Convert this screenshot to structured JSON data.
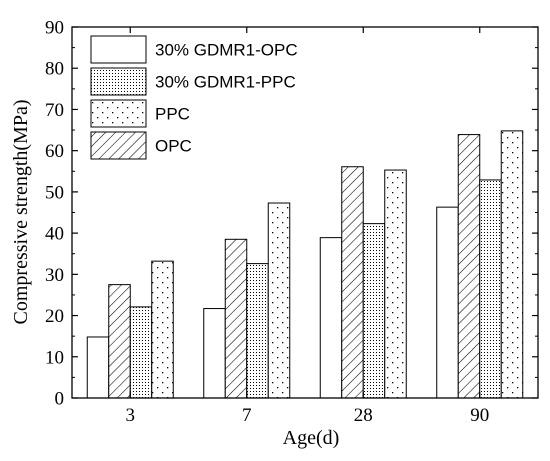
{
  "chart_data": {
    "type": "bar",
    "xlabel": "Age(d)",
    "ylabel": "Compressive strength(MPa)",
    "categories": [
      "3",
      "7",
      "28",
      "90"
    ],
    "ylim": [
      0,
      90
    ],
    "yticks": [
      0,
      10,
      20,
      30,
      40,
      50,
      60,
      70,
      80,
      90
    ],
    "grid": false,
    "legend_placement": "top-left",
    "legend_order": [
      0,
      2,
      3,
      1
    ],
    "series": [
      {
        "name": "30% GDMR1-OPC",
        "values": [
          14.8,
          21.7,
          38.9,
          46.3
        ],
        "pattern": "blank"
      },
      {
        "name": "OPC",
        "values": [
          27.5,
          38.5,
          56.1,
          63.9
        ],
        "pattern": "hatch"
      },
      {
        "name": "30% GDMR1-PPC",
        "values": [
          22.1,
          32.6,
          42.3,
          52.9
        ],
        "pattern": "dense-dots"
      },
      {
        "name": "PPC",
        "values": [
          33.2,
          47.3,
          55.3,
          64.8
        ],
        "pattern": "sparse-dots"
      }
    ],
    "colors": {
      "stroke": "#000000",
      "background": "#ffffff"
    }
  }
}
